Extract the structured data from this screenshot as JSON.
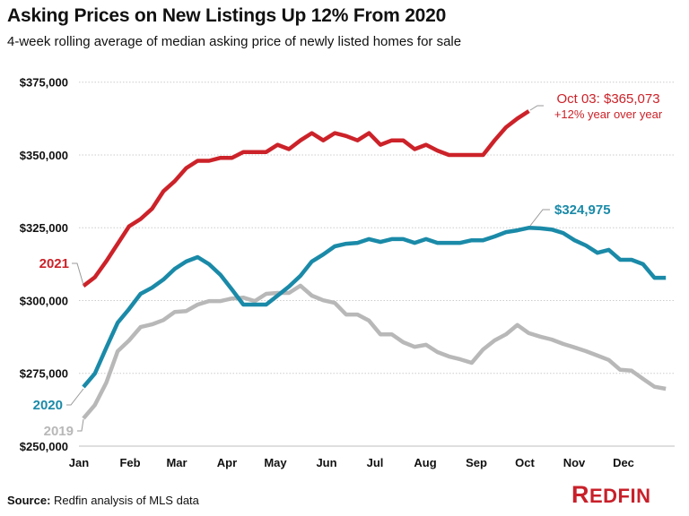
{
  "title": "Asking Prices on New Listings Up 12% From 2020",
  "subtitle": "4-week rolling average of median asking price of newly listed homes for sale",
  "source_label": "Source:",
  "source_text": "Redfin analysis of MLS data",
  "logo_text": "REDFIN",
  "colors": {
    "2021": "#cc2229",
    "2020": "#1a8aa8",
    "2019": "#b8b8b8",
    "brand": "#c8202a"
  },
  "chart_data": {
    "type": "line",
    "title": "Asking Prices on New Listings Up 12% From 2020",
    "xlabel": "",
    "ylabel": "",
    "x_unit": "week of year",
    "x_tick_labels": [
      "Jan",
      "Feb",
      "Mar",
      "Apr",
      "May",
      "Jun",
      "Jul",
      "Aug",
      "Sep",
      "Oct",
      "Nov",
      "Dec"
    ],
    "y_tick_labels": [
      "$250,000",
      "$275,000",
      "$300,000",
      "$325,000",
      "$350,000",
      "$375,000"
    ],
    "y_ticks": [
      250000,
      275000,
      300000,
      325000,
      350000,
      375000
    ],
    "ylim": [
      250000,
      375000
    ],
    "grid": "horizontal dotted",
    "legend": "inline labels at left",
    "series": [
      {
        "name": "2021",
        "color": "#cc2229",
        "values": [
          305000,
          308000,
          313500,
          319500,
          325500,
          328000,
          331500,
          337500,
          341000,
          345500,
          348000,
          348000,
          349000,
          349000,
          351000,
          351000,
          351000,
          353500,
          352000,
          355000,
          357500,
          355000,
          357500,
          356500,
          355000,
          357500,
          353500,
          355000,
          355000,
          352000,
          353500,
          351500,
          350000,
          350000,
          350000,
          350000,
          355000,
          359500,
          362500,
          365073
        ]
      },
      {
        "name": "2020",
        "color": "#1a8aa8",
        "values": [
          270300,
          274900,
          283800,
          292400,
          297100,
          302300,
          304400,
          307200,
          310900,
          313400,
          314900,
          312500,
          308800,
          303800,
          298600,
          298600,
          298600,
          301700,
          304800,
          308500,
          313400,
          315800,
          318600,
          319500,
          319800,
          321100,
          320100,
          321100,
          321100,
          319800,
          321100,
          319800,
          319800,
          319800,
          320700,
          320700,
          322000,
          323500,
          324100,
          324975,
          324800,
          324400,
          323200,
          320700,
          318900,
          316400,
          317400,
          314000,
          314000,
          312500,
          307800,
          307800
        ]
      },
      {
        "name": "2019",
        "color": "#b8b8b8",
        "values": [
          259500,
          264100,
          271800,
          282600,
          286300,
          290900,
          291800,
          293300,
          296100,
          296400,
          298600,
          299800,
          299800,
          300700,
          301000,
          299800,
          302300,
          302600,
          302600,
          305100,
          301700,
          300100,
          299200,
          295200,
          295200,
          293100,
          288400,
          288400,
          285700,
          284100,
          284800,
          282300,
          280800,
          279800,
          278600,
          283200,
          286300,
          288400,
          291600,
          288800,
          287600,
          286600,
          285100,
          283900,
          282600,
          281100,
          279600,
          276200,
          275900,
          273100,
          270400,
          269700
        ]
      }
    ],
    "annotations": [
      {
        "series": "2021",
        "text": "Oct 03: $365,073",
        "subtext": "+12% year over year"
      },
      {
        "series": "2020",
        "text": "$324,975"
      }
    ]
  }
}
